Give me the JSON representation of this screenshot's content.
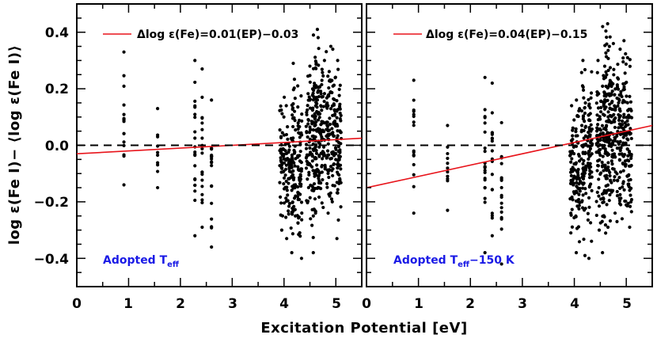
{
  "chart_data": {
    "type": "scatter",
    "xlabel": "Excitation Potential [eV]",
    "ylabel": "log ε(Fe I)− ⟨log ε(Fe I)⟩",
    "xlim": [
      0,
      5.5
    ],
    "ylim": [
      -0.5,
      0.5
    ],
    "x_ticks": [
      "0",
      "1",
      "2",
      "3",
      "4",
      "5"
    ],
    "y_ticks": [
      "0.4",
      "0.2",
      "0.0",
      "−0.2",
      "−0.4"
    ],
    "zero_line": 0.0,
    "panels": [
      {
        "legend": "Δlog ε(Fe)=0.01(EP)−0.03",
        "annotation": "Adopted T",
        "annotation_sub": "eff",
        "fit": {
          "slope": 0.01,
          "intercept": -0.03
        },
        "groups": [
          {
            "ep": 0.91,
            "min": -0.14,
            "max": 0.33
          },
          {
            "ep": 1.56,
            "min": -0.15,
            "max": 0.13
          },
          {
            "ep": 2.28,
            "min": -0.32,
            "max": 0.3
          },
          {
            "ep": 2.42,
            "min": -0.29,
            "max": 0.27
          },
          {
            "ep": 2.6,
            "min": -0.36,
            "max": 0.16
          },
          {
            "ep": 3.96,
            "min": -0.3,
            "max": 0.17
          },
          {
            "ep": 4.07,
            "min": -0.33,
            "max": 0.14
          },
          {
            "ep": 4.18,
            "min": -0.38,
            "max": 0.29
          },
          {
            "ep": 4.3,
            "min": -0.4,
            "max": 0.21
          },
          {
            "ep": 4.47,
            "min": -0.26,
            "max": 0.28
          },
          {
            "ep": 4.58,
            "min": -0.38,
            "max": 0.39
          },
          {
            "ep": 4.65,
            "min": -0.24,
            "max": 0.41
          },
          {
            "ep": 4.75,
            "min": -0.22,
            "max": 0.3
          },
          {
            "ep": 4.86,
            "min": -0.24,
            "max": 0.35
          },
          {
            "ep": 4.96,
            "min": -0.2,
            "max": 0.34
          },
          {
            "ep": 5.06,
            "min": -0.33,
            "max": 0.3
          }
        ]
      },
      {
        "legend": "Δlog ε(Fe)=0.04(EP)−0.15",
        "annotation": "Adopted T",
        "annotation_sub": "eff",
        "annotation_suffix": "−150 K",
        "fit": {
          "slope": 0.04,
          "intercept": -0.15
        },
        "groups": [
          {
            "ep": 0.91,
            "min": -0.24,
            "max": 0.23
          },
          {
            "ep": 1.56,
            "min": -0.23,
            "max": 0.07
          },
          {
            "ep": 2.28,
            "min": -0.38,
            "max": 0.24
          },
          {
            "ep": 2.42,
            "min": -0.32,
            "max": 0.22
          },
          {
            "ep": 2.6,
            "min": -0.42,
            "max": 0.08
          },
          {
            "ep": 3.96,
            "min": -0.31,
            "max": 0.14
          },
          {
            "ep": 4.07,
            "min": -0.38,
            "max": 0.16
          },
          {
            "ep": 4.18,
            "min": -0.39,
            "max": 0.3
          },
          {
            "ep": 4.3,
            "min": -0.4,
            "max": 0.26
          },
          {
            "ep": 4.47,
            "min": -0.3,
            "max": 0.3
          },
          {
            "ep": 4.58,
            "min": -0.38,
            "max": 0.42
          },
          {
            "ep": 4.65,
            "min": -0.29,
            "max": 0.43
          },
          {
            "ep": 4.75,
            "min": -0.24,
            "max": 0.36
          },
          {
            "ep": 4.86,
            "min": -0.27,
            "max": 0.34
          },
          {
            "ep": 4.96,
            "min": -0.26,
            "max": 0.37
          },
          {
            "ep": 5.06,
            "min": -0.29,
            "max": 0.31
          }
        ]
      }
    ]
  }
}
